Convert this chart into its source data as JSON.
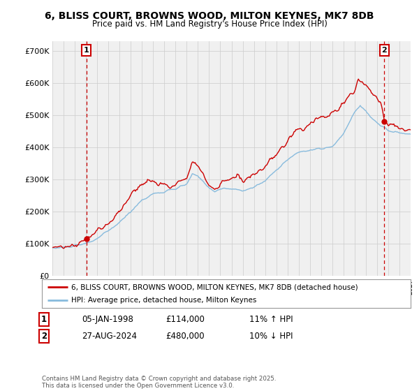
{
  "title_line1": "6, BLISS COURT, BROWNS WOOD, MILTON KEYNES, MK7 8DB",
  "title_line2": "Price paid vs. HM Land Registry's House Price Index (HPI)",
  "ylim": [
    0,
    730000
  ],
  "yticks": [
    0,
    100000,
    200000,
    300000,
    400000,
    500000,
    600000,
    700000
  ],
  "ytick_labels": [
    "£0",
    "£100K",
    "£200K",
    "£300K",
    "£400K",
    "£500K",
    "£600K",
    "£700K"
  ],
  "sale1_date": 1998.04,
  "sale1_price": 114000,
  "sale1_label": "1",
  "sale2_date": 2024.65,
  "sale2_price": 480000,
  "sale2_label": "2",
  "line_color_property": "#cc0000",
  "line_color_hpi": "#88bbdd",
  "annotation_box_color": "#cc0000",
  "grid_color": "#cccccc",
  "background_color": "#f0f0f0",
  "legend_label_property": "6, BLISS COURT, BROWNS WOOD, MILTON KEYNES, MK7 8DB (detached house)",
  "legend_label_hpi": "HPI: Average price, detached house, Milton Keynes",
  "footer_text": "Contains HM Land Registry data © Crown copyright and database right 2025.\nThis data is licensed under the Open Government Licence v3.0.",
  "table_row1": [
    "1",
    "05-JAN-1998",
    "£114,000",
    "11% ↑ HPI"
  ],
  "table_row2": [
    "2",
    "27-AUG-2024",
    "£480,000",
    "10% ↓ HPI"
  ],
  "xmin": 1995,
  "xmax": 2027
}
